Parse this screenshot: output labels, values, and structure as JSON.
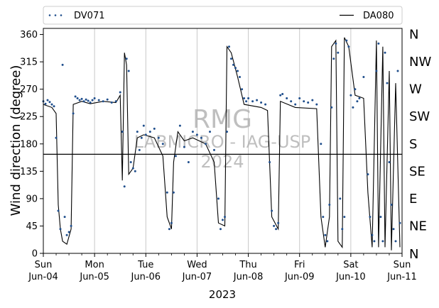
{
  "chart_data": {
    "type": "scatter",
    "xlabel": "2023",
    "ylabel": "Wind direction (degree)",
    "ylim": [
      0,
      370
    ],
    "xlim": [
      "2023-06-04",
      "2023-06-11"
    ],
    "grid": "vertical",
    "legend_placement": "top",
    "x_ticks": [
      {
        "x": "2023-06-04",
        "day": "Sun",
        "date": "Jun-04"
      },
      {
        "x": "2023-06-05",
        "day": "Mon",
        "date": "Jun-05"
      },
      {
        "x": "2023-06-06",
        "day": "Tue",
        "date": "Jun-06"
      },
      {
        "x": "2023-06-07",
        "day": "Wed",
        "date": "Jun-07"
      },
      {
        "x": "2023-06-08",
        "day": "Thu",
        "date": "Jun-08"
      },
      {
        "x": "2023-06-09",
        "day": "Fri",
        "date": "Jun-09"
      },
      {
        "x": "2023-06-10",
        "day": "Sat",
        "date": "Jun-10"
      },
      {
        "x": "2023-06-11",
        "day": "Sun",
        "date": "Jun-11"
      }
    ],
    "y_ticks": [
      0,
      45,
      90,
      135,
      180,
      225,
      270,
      315,
      360
    ],
    "compass_labels": [
      {
        "y": 0,
        "label": "N"
      },
      {
        "y": 45,
        "label": "NE"
      },
      {
        "y": 90,
        "label": "E"
      },
      {
        "y": 135,
        "label": "SE"
      },
      {
        "y": 180,
        "label": "S"
      },
      {
        "y": 225,
        "label": "SW"
      },
      {
        "y": 270,
        "label": "W"
      },
      {
        "y": 315,
        "label": "NW"
      },
      {
        "y": 360,
        "label": "N"
      }
    ],
    "reference_line": {
      "y": 163
    },
    "watermark": [
      "RMG",
      "LABMICRO - IAG-USP",
      "2024"
    ],
    "series": [
      {
        "name": "DV071",
        "style": "dots",
        "color": "#1f4e8c",
        "points": [
          [
            "2023-06-04T00:00",
            250
          ],
          [
            "2023-06-04T01:00",
            246
          ],
          [
            "2023-06-04T02:00",
            252
          ],
          [
            "2023-06-04T03:00",
            249
          ],
          [
            "2023-06-04T04:00",
            245
          ],
          [
            "2023-06-04T05:00",
            242
          ],
          [
            "2023-06-04T06:00",
            190
          ],
          [
            "2023-06-04T07:00",
            70
          ],
          [
            "2023-06-04T08:00",
            40
          ],
          [
            "2023-06-04T09:00",
            310
          ],
          [
            "2023-06-04T10:00",
            60
          ],
          [
            "2023-06-04T11:00",
            30
          ],
          [
            "2023-06-04T12:00",
            35
          ],
          [
            "2023-06-04T13:00",
            45
          ],
          [
            "2023-06-04T14:00",
            230
          ],
          [
            "2023-06-04T15:00",
            258
          ],
          [
            "2023-06-04T16:00",
            255
          ],
          [
            "2023-06-04T17:00",
            252
          ],
          [
            "2023-06-04T18:00",
            254
          ],
          [
            "2023-06-04T19:00",
            250
          ],
          [
            "2023-06-04T20:00",
            253
          ],
          [
            "2023-06-04T21:00",
            251
          ],
          [
            "2023-06-04T22:00",
            248
          ],
          [
            "2023-06-04T23:00",
            252
          ],
          [
            "2023-06-05T00:00",
            255
          ],
          [
            "2023-06-05T02:00",
            252
          ],
          [
            "2023-06-05T04:00",
            250
          ],
          [
            "2023-06-05T06:00",
            253
          ],
          [
            "2023-06-05T08:00",
            248
          ],
          [
            "2023-06-05T10:00",
            250
          ],
          [
            "2023-06-05T12:00",
            265
          ],
          [
            "2023-06-05T13:00",
            200
          ],
          [
            "2023-06-05T14:00",
            110
          ],
          [
            "2023-06-05T15:00",
            320
          ],
          [
            "2023-06-05T16:00",
            300
          ],
          [
            "2023-06-05T17:00",
            150
          ],
          [
            "2023-06-05T18:00",
            140
          ],
          [
            "2023-06-05T19:00",
            135
          ],
          [
            "2023-06-05T20:00",
            200
          ],
          [
            "2023-06-05T21:00",
            170
          ],
          [
            "2023-06-05T22:00",
            190
          ],
          [
            "2023-06-05T23:00",
            210
          ],
          [
            "2023-06-06T00:00",
            195
          ],
          [
            "2023-06-06T02:00",
            200
          ],
          [
            "2023-06-06T04:00",
            205
          ],
          [
            "2023-06-06T06:00",
            190
          ],
          [
            "2023-06-06T08:00",
            180
          ],
          [
            "2023-06-06T10:00",
            100
          ],
          [
            "2023-06-06T11:00",
            40
          ],
          [
            "2023-06-06T12:00",
            50
          ],
          [
            "2023-06-06T13:00",
            100
          ],
          [
            "2023-06-06T14:00",
            160
          ],
          [
            "2023-06-06T16:00",
            210
          ],
          [
            "2023-06-06T18:00",
            175
          ],
          [
            "2023-06-06T20:00",
            150
          ],
          [
            "2023-06-06T22:00",
            200
          ],
          [
            "2023-06-07T00:00",
            195
          ],
          [
            "2023-06-07T02:00",
            190
          ],
          [
            "2023-06-07T04:00",
            180
          ],
          [
            "2023-06-07T06:00",
            200
          ],
          [
            "2023-06-07T08:00",
            170
          ],
          [
            "2023-06-07T10:00",
            90
          ],
          [
            "2023-06-07T11:00",
            40
          ],
          [
            "2023-06-07T12:00",
            55
          ],
          [
            "2023-06-07T13:00",
            60
          ],
          [
            "2023-06-07T14:00",
            200
          ],
          [
            "2023-06-07T15:00",
            340
          ],
          [
            "2023-06-07T16:00",
            320
          ],
          [
            "2023-06-07T17:00",
            310
          ],
          [
            "2023-06-07T18:00",
            305
          ],
          [
            "2023-06-07T19:00",
            300
          ],
          [
            "2023-06-07T20:00",
            290
          ],
          [
            "2023-06-07T21:00",
            270
          ],
          [
            "2023-06-07T22:00",
            255
          ],
          [
            "2023-06-07T23:00",
            250
          ],
          [
            "2023-06-08T00:00",
            255
          ],
          [
            "2023-06-08T02:00",
            250
          ],
          [
            "2023-06-08T04:00",
            252
          ],
          [
            "2023-06-08T06:00",
            248
          ],
          [
            "2023-06-08T08:00",
            245
          ],
          [
            "2023-06-08T10:00",
            150
          ],
          [
            "2023-06-08T11:00",
            70
          ],
          [
            "2023-06-08T12:00",
            45
          ],
          [
            "2023-06-08T13:00",
            40
          ],
          [
            "2023-06-08T14:00",
            50
          ],
          [
            "2023-06-08T15:00",
            260
          ],
          [
            "2023-06-08T16:00",
            262
          ],
          [
            "2023-06-08T18:00",
            255
          ],
          [
            "2023-06-08T20:00",
            250
          ],
          [
            "2023-06-08T22:00",
            245
          ],
          [
            "2023-06-09T00:00",
            255
          ],
          [
            "2023-06-09T02:00",
            250
          ],
          [
            "2023-06-09T04:00",
            248
          ],
          [
            "2023-06-09T06:00",
            252
          ],
          [
            "2023-06-09T08:00",
            245
          ],
          [
            "2023-06-09T10:00",
            180
          ],
          [
            "2023-06-09T11:00",
            60
          ],
          [
            "2023-06-09T12:00",
            30
          ],
          [
            "2023-06-09T13:00",
            20
          ],
          [
            "2023-06-09T14:00",
            80
          ],
          [
            "2023-06-09T15:00",
            240
          ],
          [
            "2023-06-09T16:00",
            320
          ],
          [
            "2023-06-09T17:00",
            345
          ],
          [
            "2023-06-09T18:00",
            330
          ],
          [
            "2023-06-09T19:00",
            90
          ],
          [
            "2023-06-09T20:00",
            40
          ],
          [
            "2023-06-09T21:00",
            60
          ],
          [
            "2023-06-09T22:00",
            350
          ],
          [
            "2023-06-09T23:00",
            340
          ],
          [
            "2023-06-10T00:00",
            260
          ],
          [
            "2023-06-10T01:00",
            240
          ],
          [
            "2023-06-10T02:00",
            270
          ],
          [
            "2023-06-10T03:00",
            250
          ],
          [
            "2023-06-10T04:00",
            255
          ],
          [
            "2023-06-10T06:00",
            290
          ],
          [
            "2023-06-10T08:00",
            130
          ],
          [
            "2023-06-10T09:00",
            60
          ],
          [
            "2023-06-10T10:00",
            30
          ],
          [
            "2023-06-10T11:00",
            20
          ],
          [
            "2023-06-10T12:00",
            300
          ],
          [
            "2023-06-10T13:00",
            345
          ],
          [
            "2023-06-10T14:00",
            60
          ],
          [
            "2023-06-10T15:00",
            20
          ],
          [
            "2023-06-10T16:00",
            330
          ],
          [
            "2023-06-10T17:00",
            280
          ],
          [
            "2023-06-10T18:00",
            150
          ],
          [
            "2023-06-10T19:00",
            80
          ],
          [
            "2023-06-10T20:00",
            40
          ],
          [
            "2023-06-10T21:00",
            20
          ],
          [
            "2023-06-10T22:00",
            300
          ],
          [
            "2023-06-10T23:00",
            50
          ]
        ]
      },
      {
        "name": "DA080",
        "style": "line",
        "color": "#000000",
        "points": [
          [
            "2023-06-04T00:00",
            245
          ],
          [
            "2023-06-04T04:00",
            240
          ],
          [
            "2023-06-04T06:00",
            230
          ],
          [
            "2023-06-04T07:00",
            80
          ],
          [
            "2023-06-04T08:00",
            40
          ],
          [
            "2023-06-04T09:00",
            20
          ],
          [
            "2023-06-04T11:00",
            15
          ],
          [
            "2023-06-04T13:00",
            40
          ],
          [
            "2023-06-04T14:00",
            245
          ],
          [
            "2023-06-04T18:00",
            250
          ],
          [
            "2023-06-04T22:00",
            246
          ],
          [
            "2023-06-05T04:00",
            250
          ],
          [
            "2023-06-05T10:00",
            248
          ],
          [
            "2023-06-05T12:00",
            260
          ],
          [
            "2023-06-05T13:00",
            120
          ],
          [
            "2023-06-05T14:00",
            330
          ],
          [
            "2023-06-05T15:00",
            310
          ],
          [
            "2023-06-05T16:00",
            130
          ],
          [
            "2023-06-05T18:00",
            140
          ],
          [
            "2023-06-05T20:00",
            190
          ],
          [
            "2023-06-05T23:00",
            195
          ],
          [
            "2023-06-06T04:00",
            190
          ],
          [
            "2023-06-06T08:00",
            160
          ],
          [
            "2023-06-06T10:00",
            60
          ],
          [
            "2023-06-06T12:00",
            40
          ],
          [
            "2023-06-06T13:00",
            150
          ],
          [
            "2023-06-06T15:00",
            200
          ],
          [
            "2023-06-06T18:00",
            185
          ],
          [
            "2023-06-06T22:00",
            190
          ],
          [
            "2023-06-07T04:00",
            180
          ],
          [
            "2023-06-07T08:00",
            150
          ],
          [
            "2023-06-07T10:00",
            50
          ],
          [
            "2023-06-07T13:00",
            45
          ],
          [
            "2023-06-07T14:00",
            340
          ],
          [
            "2023-06-07T16:00",
            330
          ],
          [
            "2023-06-07T19:00",
            290
          ],
          [
            "2023-06-07T22:00",
            245
          ],
          [
            "2023-06-08T06:00",
            240
          ],
          [
            "2023-06-08T09:00",
            235
          ],
          [
            "2023-06-08T11:00",
            60
          ],
          [
            "2023-06-08T14:00",
            40
          ],
          [
            "2023-06-08T15:00",
            250
          ],
          [
            "2023-06-08T22:00",
            240
          ],
          [
            "2023-06-09T08:00",
            238
          ],
          [
            "2023-06-09T10:00",
            60
          ],
          [
            "2023-06-09T12:00",
            10
          ],
          [
            "2023-06-09T14:00",
            60
          ],
          [
            "2023-06-09T15:00",
            340
          ],
          [
            "2023-06-09T17:00",
            350
          ],
          [
            "2023-06-09T18:00",
            20
          ],
          [
            "2023-06-09T20:00",
            10
          ],
          [
            "2023-06-09T21:00",
            355
          ],
          [
            "2023-06-09T23:00",
            340
          ],
          [
            "2023-06-10T02:00",
            260
          ],
          [
            "2023-06-10T06:00",
            255
          ],
          [
            "2023-06-10T08:00",
            100
          ],
          [
            "2023-06-10T10:00",
            10
          ],
          [
            "2023-06-10T12:00",
            350
          ],
          [
            "2023-06-10T13:00",
            10
          ],
          [
            "2023-06-10T15:00",
            340
          ],
          [
            "2023-06-10T16:00",
            10
          ],
          [
            "2023-06-10T18:00",
            300
          ],
          [
            "2023-06-10T19:00",
            5
          ],
          [
            "2023-06-10T21:00",
            280
          ],
          [
            "2023-06-10T23:00",
            10
          ]
        ]
      }
    ]
  }
}
